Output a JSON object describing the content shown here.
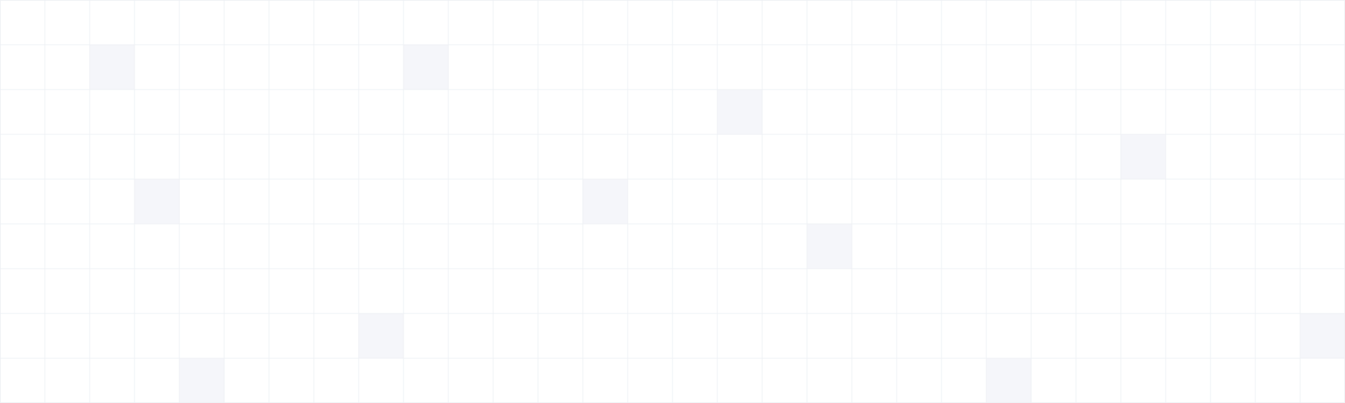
{
  "grid": {
    "columns": 30,
    "rows": 9,
    "line_color": "#eef0f4",
    "background_color": "#ffffff",
    "highlight_color": "#f5f6fa",
    "highlighted_cells": [
      {
        "col": 2,
        "row": 1
      },
      {
        "col": 9,
        "row": 1
      },
      {
        "col": 16,
        "row": 2
      },
      {
        "col": 25,
        "row": 3
      },
      {
        "col": 3,
        "row": 4
      },
      {
        "col": 13,
        "row": 4
      },
      {
        "col": 18,
        "row": 5
      },
      {
        "col": 8,
        "row": 7
      },
      {
        "col": 29,
        "row": 7
      },
      {
        "col": 4,
        "row": 8
      },
      {
        "col": 22,
        "row": 8
      }
    ]
  }
}
